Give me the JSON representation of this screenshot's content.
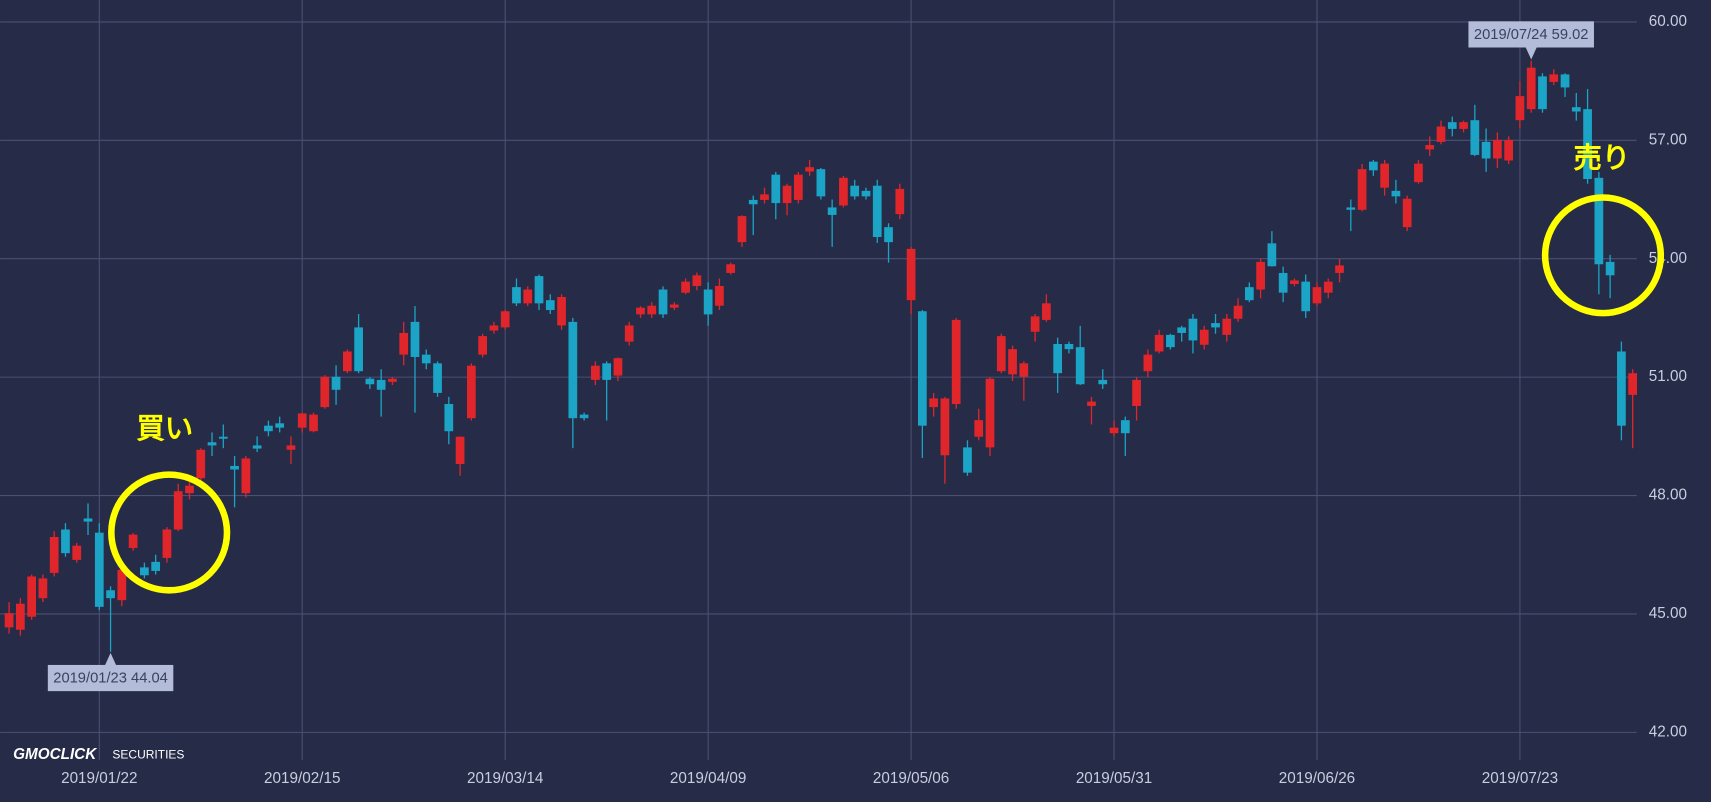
{
  "chart_data": {
    "type": "candlestick",
    "categories": [
      null,
      null,
      null,
      null,
      null,
      null,
      null,
      null,
      "2019/01/22",
      null,
      null,
      null,
      null,
      null,
      null,
      null,
      null,
      null,
      null,
      null,
      null,
      null,
      null,
      null,
      null,
      null,
      "2019/02/15",
      null,
      null,
      null,
      null,
      null,
      null,
      null,
      null,
      null,
      null,
      null,
      null,
      null,
      null,
      null,
      null,
      null,
      "2019/03/14",
      null,
      null,
      null,
      null,
      null,
      null,
      null,
      null,
      null,
      null,
      null,
      null,
      null,
      null,
      null,
      null,
      null,
      "2019/04/09",
      null,
      null,
      null,
      null,
      null,
      null,
      null,
      null,
      null,
      null,
      null,
      null,
      null,
      null,
      null,
      null,
      null,
      "2019/05/06",
      null,
      null,
      null,
      null,
      null,
      null,
      null,
      null,
      null,
      null,
      null,
      null,
      null,
      null,
      null,
      null,
      null,
      "2019/05/31",
      null,
      null,
      null,
      null,
      null,
      null,
      null,
      null,
      null,
      null,
      null,
      null,
      null,
      null,
      null,
      null,
      null,
      "2019/06/26",
      null,
      null,
      null,
      null,
      null,
      null,
      null,
      null,
      null,
      null,
      null,
      null,
      null,
      null,
      null,
      null,
      null,
      "2019/07/23",
      null,
      null,
      null,
      null,
      null,
      null,
      null,
      null,
      null,
      null
    ],
    "open": [
      44.66,
      44.6,
      44.93,
      45.4,
      46.04,
      47.14,
      46.37,
      47.42,
      47.06,
      45.6,
      45.35,
      46.67,
      46.18,
      46.32,
      46.42,
      47.14,
      48.06,
      48.44,
      49.35,
      49.49,
      48.75,
      48.06,
      49.27,
      49.77,
      49.83,
      49.16,
      49.72,
      49.63,
      50.24,
      51.01,
      51.15,
      52.26,
      50.96,
      50.93,
      50.88,
      51.57,
      52.4,
      51.57,
      51.35,
      50.32,
      48.8,
      49.96,
      51.57,
      52.18,
      52.26,
      53.28,
      52.87,
      53.56,
      52.95,
      52.31,
      52.4,
      50.05,
      50.93,
      51.35,
      51.04,
      51.9,
      52.59,
      52.59,
      53.22,
      52.76,
      53.14,
      53.31,
      53.22,
      52.81,
      53.64,
      54.42,
      55.49,
      55.49,
      56.13,
      55.41,
      55.49,
      56.21,
      56.27,
      55.3,
      55.35,
      55.85,
      55.72,
      55.85,
      54.8,
      55.13,
      52.95,
      52.67,
      50.24,
      49.02,
      50.32,
      49.22,
      49.49,
      49.22,
      51.15,
      51.07,
      51.01,
      52.15,
      52.45,
      51.84,
      51.84,
      51.76,
      50.27,
      50.93,
      49.58,
      49.91,
      50.27,
      51.15,
      51.65,
      52.07,
      52.26,
      52.48,
      51.82,
      52.37,
      52.07,
      52.48,
      53.28,
      53.22,
      54.39,
      53.64,
      53.36,
      53.42,
      52.87,
      53.14,
      53.64,
      55.3,
      55.24,
      56.46,
      55.8,
      55.72,
      54.8,
      55.94,
      56.77,
      56.96,
      57.46,
      57.29,
      57.51,
      56.96,
      56.54,
      56.49,
      57.51,
      57.79,
      58.62,
      58.48,
      58.67,
      57.84,
      57.79,
      56.05,
      53.92,
      51.65,
      50.55
    ],
    "high": [
      45.3,
      45.4,
      46.0,
      46.0,
      47.1,
      47.3,
      46.8,
      47.8,
      47.3,
      45.7,
      46.3,
      47.05,
      46.3,
      46.5,
      47.2,
      48.3,
      48.4,
      49.2,
      49.6,
      49.8,
      49.0,
      49.0,
      49.5,
      49.9,
      50.0,
      49.5,
      50.1,
      50.1,
      51.05,
      51.3,
      51.7,
      52.6,
      51.0,
      51.2,
      51.0,
      52.4,
      52.8,
      51.7,
      51.4,
      50.5,
      49.5,
      51.35,
      52.1,
      52.4,
      52.7,
      53.5,
      53.3,
      53.6,
      53.1,
      53.1,
      52.5,
      50.1,
      51.4,
      51.4,
      51.5,
      52.4,
      52.8,
      52.9,
      53.3,
      52.9,
      53.5,
      53.65,
      53.4,
      53.5,
      53.9,
      55.1,
      55.6,
      55.8,
      56.2,
      55.9,
      56.2,
      56.5,
      56.3,
      55.5,
      56.1,
      56.0,
      55.8,
      56.0,
      54.9,
      55.9,
      54.3,
      52.7,
      50.6,
      50.5,
      52.5,
      49.4,
      50.2,
      51.0,
      52.1,
      51.8,
      51.4,
      52.6,
      53.1,
      52.0,
      51.9,
      52.3,
      50.5,
      51.2,
      49.9,
      50.0,
      51.0,
      51.7,
      52.2,
      52.1,
      52.3,
      52.6,
      52.3,
      52.6,
      52.6,
      53.0,
      53.4,
      54.0,
      54.7,
      53.8,
      53.5,
      53.6,
      53.4,
      53.5,
      54.0,
      55.5,
      56.4,
      56.5,
      56.5,
      56.0,
      55.6,
      56.5,
      57.1,
      57.5,
      57.6,
      57.5,
      57.9,
      57.3,
      57.2,
      57.1,
      58.5,
      59.02,
      58.7,
      58.8,
      58.7,
      58.2,
      58.3,
      56.2,
      54.1,
      51.9,
      51.2
    ],
    "low": [
      44.5,
      44.45,
      44.85,
      45.3,
      45.95,
      46.45,
      46.3,
      47.0,
      45.1,
      44.04,
      45.2,
      46.6,
      45.9,
      46.0,
      46.3,
      47.1,
      47.9,
      48.3,
      49.0,
      49.2,
      47.7,
      47.95,
      49.1,
      49.5,
      49.6,
      48.8,
      49.6,
      49.6,
      50.2,
      50.3,
      51.1,
      51.1,
      50.7,
      50.0,
      50.8,
      51.3,
      50.1,
      51.2,
      50.5,
      49.3,
      48.5,
      49.9,
      51.5,
      52.1,
      52.2,
      52.8,
      52.8,
      52.7,
      52.6,
      52.2,
      49.2,
      49.9,
      50.8,
      49.9,
      50.9,
      51.8,
      52.5,
      52.5,
      52.5,
      52.7,
      53.1,
      53.2,
      52.3,
      52.7,
      53.6,
      54.3,
      54.6,
      55.4,
      55.0,
      55.1,
      55.4,
      56.1,
      55.5,
      54.3,
      55.3,
      55.5,
      55.5,
      54.4,
      53.9,
      55.0,
      52.6,
      48.95,
      50.0,
      48.3,
      50.2,
      48.5,
      49.4,
      49.0,
      51.1,
      50.9,
      50.4,
      51.9,
      52.4,
      50.6,
      51.6,
      50.8,
      49.8,
      50.7,
      49.5,
      49.0,
      49.9,
      51.0,
      51.6,
      51.7,
      51.9,
      51.6,
      51.7,
      52.1,
      51.9,
      52.4,
      52.9,
      53.0,
      53.8,
      52.9,
      53.3,
      52.5,
      52.8,
      53.0,
      53.4,
      54.7,
      55.2,
      56.1,
      55.6,
      55.4,
      54.7,
      55.9,
      56.6,
      56.9,
      57.1,
      57.2,
      56.6,
      56.2,
      56.3,
      56.4,
      57.3,
      57.7,
      57.7,
      58.4,
      58.1,
      57.5,
      55.9,
      53.1,
      53.0,
      49.4,
      49.2
    ],
    "close": [
      45.02,
      45.26,
      45.95,
      45.9,
      46.95,
      46.54,
      46.73,
      47.34,
      45.18,
      45.4,
      46.12,
      47.01,
      45.98,
      46.09,
      47.14,
      48.11,
      48.25,
      49.16,
      49.27,
      49.44,
      48.66,
      48.94,
      49.19,
      49.63,
      49.72,
      49.27,
      50.08,
      50.05,
      51.01,
      50.68,
      51.65,
      51.15,
      50.82,
      50.68,
      50.96,
      52.12,
      51.51,
      51.35,
      50.6,
      49.63,
      49.49,
      51.29,
      52.04,
      52.31,
      52.67,
      52.87,
      53.22,
      52.87,
      52.7,
      53.03,
      49.96,
      49.96,
      51.29,
      50.93,
      51.48,
      52.31,
      52.76,
      52.81,
      52.59,
      52.84,
      53.42,
      53.58,
      52.59,
      53.31,
      53.86,
      55.08,
      55.38,
      55.63,
      55.41,
      55.85,
      56.13,
      56.32,
      55.58,
      55.11,
      56.05,
      55.58,
      55.58,
      54.55,
      54.42,
      55.77,
      54.25,
      49.77,
      50.46,
      50.46,
      52.45,
      48.58,
      49.91,
      50.96,
      52.04,
      51.71,
      51.35,
      52.54,
      52.87,
      51.1,
      51.71,
      50.82,
      50.38,
      50.82,
      49.72,
      49.58,
      50.93,
      51.57,
      52.07,
      51.76,
      52.12,
      51.93,
      52.2,
      52.26,
      52.48,
      52.81,
      52.95,
      53.92,
      53.81,
      53.14,
      53.45,
      52.67,
      53.28,
      53.42,
      53.83,
      55.24,
      56.27,
      56.24,
      56.41,
      55.58,
      55.52,
      56.41,
      56.88,
      57.35,
      57.29,
      57.46,
      56.63,
      56.54,
      57.01,
      57.01,
      58.12,
      58.84,
      57.79,
      58.67,
      58.34,
      57.73,
      56.02,
      53.86,
      53.58,
      49.77,
      51.1
    ],
    "up_color": "#e0262b",
    "down_color": "#1ba4c6",
    "ylim": [
      41.3,
      60.5
    ],
    "yticks": [
      {
        "value": 42,
        "label": "42.00"
      },
      {
        "value": 45,
        "label": "45.00"
      },
      {
        "value": 48,
        "label": "48.00"
      },
      {
        "value": 51,
        "label": "51.00"
      },
      {
        "value": 54,
        "label": "54.00"
      },
      {
        "value": 57,
        "label": "57.00"
      },
      {
        "value": 60,
        "label": "60.00"
      }
    ],
    "grid": true,
    "annotations": [
      {
        "text": "2019/01/23 44.04",
        "value": 44.04
      },
      {
        "text": "2019/07/24 59.02",
        "value": 59.02
      }
    ],
    "signals": {
      "buy": "買い",
      "sell": "売り"
    },
    "watermark": {
      "brand": "GMOCLICK",
      "sub": "SECURITIES"
    }
  }
}
